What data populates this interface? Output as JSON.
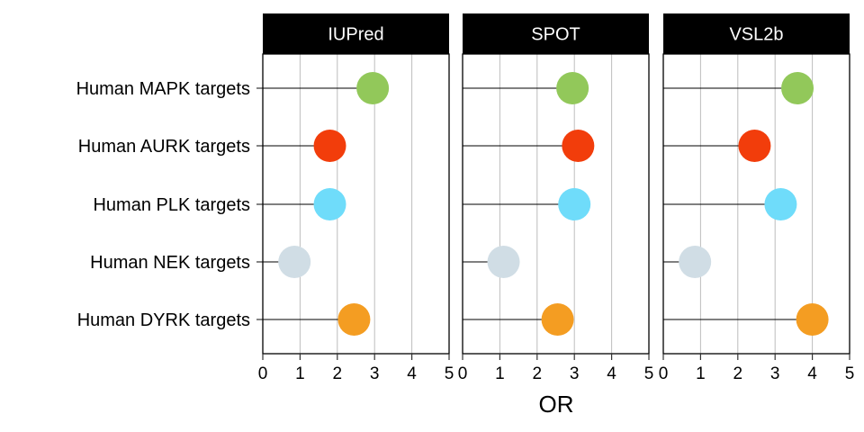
{
  "chart_data": {
    "type": "lollipop",
    "xlabel": "OR",
    "xlim": [
      0,
      5
    ],
    "xticks": [
      0,
      1,
      2,
      3,
      4,
      5
    ],
    "grid": "vertical",
    "categories": [
      "Human MAPK targets",
      "Human AURK targets",
      "Human PLK targets",
      "Human NEK targets",
      "Human DYRK targets"
    ],
    "colors": [
      "#92c85a",
      "#f23d0b",
      "#6fdcfa",
      "#d0dde5",
      "#f49d22"
    ],
    "panels": [
      {
        "name": "IUPred",
        "values": [
          2.95,
          1.8,
          1.8,
          0.85,
          2.45
        ]
      },
      {
        "name": "SPOT",
        "values": [
          2.95,
          3.1,
          3.0,
          1.1,
          2.55
        ]
      },
      {
        "name": "VSL2b",
        "values": [
          3.6,
          2.45,
          3.15,
          0.85,
          4.0
        ]
      }
    ]
  }
}
